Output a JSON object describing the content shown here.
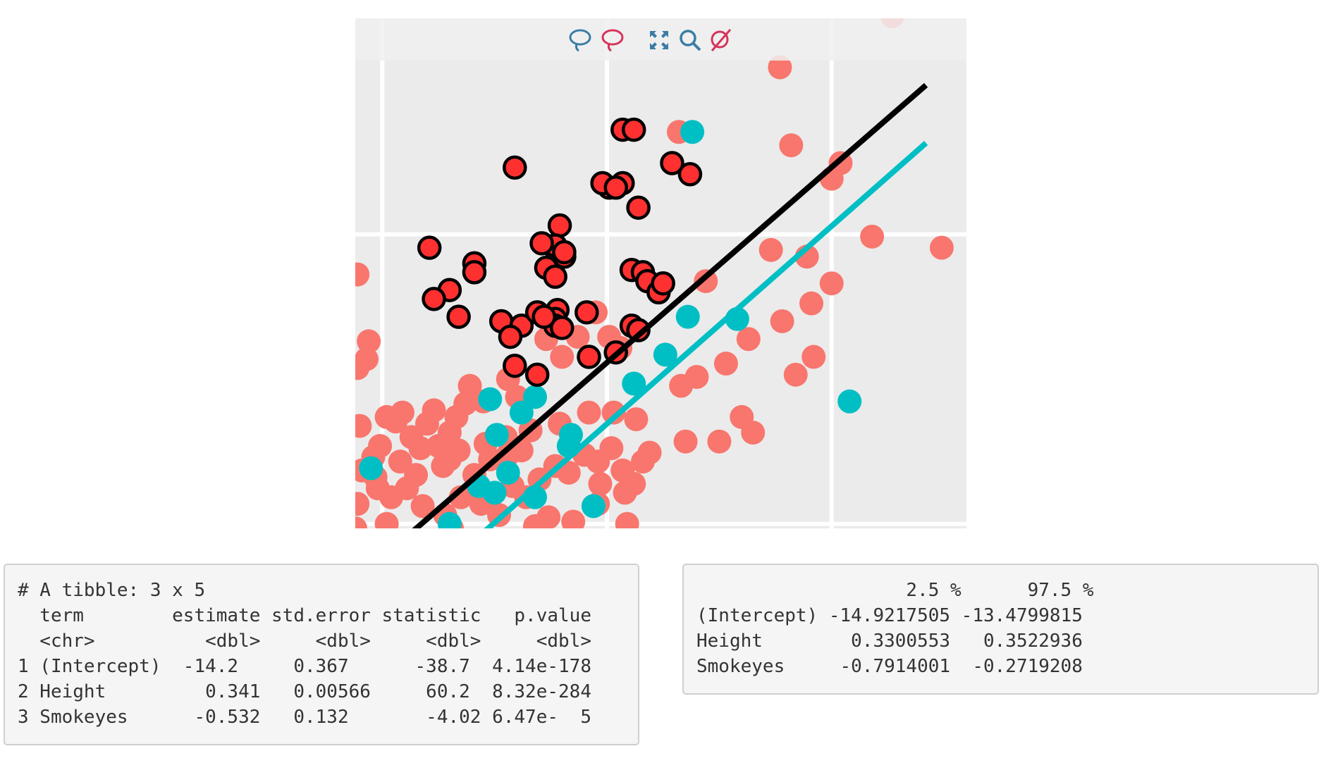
{
  "chart_data": {
    "type": "scatter",
    "title": "",
    "xlabel": "",
    "ylabel": "",
    "xlim": [
      -0.12,
      2.6
    ],
    "ylim": [
      -0.02,
      2.27
    ],
    "grid": true,
    "gridlines_x": [
      0,
      1,
      2
    ],
    "gridlines_y": [
      0,
      1.3
    ],
    "series": [
      {
        "color": "#f8766d",
        "points": [
          [
            2.27,
            2.28
          ],
          [
            1.77,
            2.05
          ],
          [
            1.32,
            1.76
          ],
          [
            1.82,
            1.7
          ],
          [
            2.04,
            1.62
          ],
          [
            2.0,
            1.55
          ],
          [
            1.73,
            1.23
          ],
          [
            2.18,
            1.29
          ],
          [
            2.49,
            1.24
          ],
          [
            1.89,
            1.2
          ],
          [
            2.0,
            1.08
          ],
          [
            1.44,
            1.09
          ],
          [
            1.91,
            0.99
          ],
          [
            1.78,
            0.91
          ],
          [
            1.63,
            0.83
          ],
          [
            1.92,
            0.75
          ],
          [
            1.4,
            0.66
          ],
          [
            1.53,
            0.72
          ],
          [
            1.84,
            0.67
          ],
          [
            1.6,
            0.48
          ],
          [
            1.65,
            0.41
          ],
          [
            1.5,
            0.37
          ],
          [
            1.35,
            0.37
          ],
          [
            1.19,
            0.32
          ],
          [
            1.13,
            0.47
          ],
          [
            1.33,
            0.62
          ],
          [
            1.06,
            0.79
          ],
          [
            1.01,
            0.84
          ],
          [
            0.95,
            0.95
          ],
          [
            0.87,
            0.84
          ],
          [
            0.8,
            0.75
          ],
          [
            0.73,
            0.83
          ],
          [
            0.69,
            0.67
          ],
          [
            0.6,
            0.57
          ],
          [
            0.56,
            0.65
          ],
          [
            0.45,
            0.55
          ],
          [
            0.39,
            0.62
          ],
          [
            0.37,
            0.54
          ],
          [
            0.33,
            0.48
          ],
          [
            0.3,
            0.41
          ],
          [
            0.25,
            0.35
          ],
          [
            0.23,
            0.51
          ],
          [
            0.2,
            0.45
          ],
          [
            0.17,
            0.34
          ],
          [
            0.13,
            0.39
          ],
          [
            0.09,
            0.5
          ],
          [
            0.06,
            0.46
          ],
          [
            0.02,
            0.48
          ],
          [
            -0.01,
            0.35
          ],
          [
            -0.04,
            0.3
          ],
          [
            -0.02,
            0.16
          ],
          [
            0.04,
            0.12
          ],
          [
            0.11,
            0.16
          ],
          [
            0.18,
            0.08
          ],
          [
            0.28,
            0.04
          ],
          [
            0.35,
            0.12
          ],
          [
            0.44,
            0.09
          ],
          [
            0.52,
            0.04
          ],
          [
            0.58,
            0.17
          ],
          [
            0.64,
            0.12
          ],
          [
            0.7,
            0.2
          ],
          [
            0.77,
            0.26
          ],
          [
            0.83,
            0.23
          ],
          [
            0.9,
            0.31
          ],
          [
            0.96,
            0.28
          ],
          [
            1.02,
            0.34
          ],
          [
            1.07,
            0.24
          ],
          [
            1.12,
            0.18
          ],
          [
            0.74,
            0.03
          ],
          [
            0.85,
            0.01
          ],
          [
            0.96,
            0.09
          ],
          [
            1.08,
            0.14
          ],
          [
            1.16,
            0.28
          ],
          [
            0.62,
            0.33
          ],
          [
            0.48,
            0.29
          ],
          [
            0.41,
            0.22
          ],
          [
            0.27,
            0.26
          ],
          [
            0.15,
            0.22
          ],
          [
            0.08,
            0.28
          ],
          [
            -0.03,
            0.21
          ],
          [
            -0.09,
            0.24
          ],
          [
            -0.11,
            0.09
          ],
          [
            -0.1,
            0.44
          ],
          [
            -0.11,
            0.7
          ],
          [
            -0.07,
            0.74
          ],
          [
            -0.11,
            1.12
          ],
          [
            -0.06,
            0.82
          ],
          [
            0.56,
            0.31
          ],
          [
            0.66,
            0.42
          ],
          [
            0.79,
            0.45
          ],
          [
            0.92,
            0.5
          ],
          [
            0.55,
            0.39
          ],
          [
            0.34,
            0.33
          ],
          [
            -0.12,
            -0.02
          ],
          [
            0.02,
            0.0
          ],
          [
            0.31,
            -0.02
          ],
          [
            0.68,
            -0.01
          ],
          [
            1.09,
            0.0
          ],
          [
            0.3,
            0.29
          ],
          [
            0.46,
            0.36
          ],
          [
            1.03,
            0.5
          ],
          [
            0.97,
            0.18
          ]
        ]
      },
      {
        "color": "#00bfc4",
        "points": [
          [
            1.38,
            1.76
          ],
          [
            1.36,
            0.93
          ],
          [
            1.58,
            0.92
          ],
          [
            1.26,
            0.76
          ],
          [
            1.12,
            0.63
          ],
          [
            2.08,
            0.55
          ],
          [
            0.48,
            0.56
          ],
          [
            0.68,
            0.57
          ],
          [
            0.62,
            0.5
          ],
          [
            0.51,
            0.4
          ],
          [
            0.84,
            0.4
          ],
          [
            0.83,
            0.35
          ],
          [
            0.56,
            0.23
          ],
          [
            0.43,
            0.17
          ],
          [
            0.5,
            0.14
          ],
          [
            0.68,
            0.12
          ],
          [
            0.94,
            0.08
          ],
          [
            -0.05,
            0.25
          ],
          [
            0.3,
            0.0
          ]
        ]
      },
      {
        "color": "#ff3030",
        "stroke": "#000000",
        "points": [
          [
            0.59,
            1.6
          ],
          [
            0.21,
            1.24
          ],
          [
            1.07,
            1.77
          ],
          [
            1.12,
            1.77
          ],
          [
            1.29,
            1.62
          ],
          [
            1.37,
            1.57
          ],
          [
            1.07,
            1.53
          ],
          [
            1.01,
            1.51
          ],
          [
            0.98,
            1.53
          ],
          [
            1.04,
            1.51
          ],
          [
            1.14,
            1.42
          ],
          [
            0.79,
            1.34
          ],
          [
            0.77,
            1.25
          ],
          [
            0.78,
            1.21
          ],
          [
            0.77,
            1.25
          ],
          [
            0.81,
            1.2
          ],
          [
            0.71,
            1.26
          ],
          [
            0.81,
            1.22
          ],
          [
            0.73,
            1.15
          ],
          [
            0.77,
            1.11
          ],
          [
            1.11,
            1.14
          ],
          [
            1.16,
            1.13
          ],
          [
            1.18,
            1.09
          ],
          [
            1.23,
            1.04
          ],
          [
            1.25,
            1.08
          ],
          [
            0.41,
            1.17
          ],
          [
            0.41,
            1.13
          ],
          [
            0.3,
            1.05
          ],
          [
            0.23,
            1.01
          ],
          [
            0.34,
            0.93
          ],
          [
            0.53,
            0.91
          ],
          [
            0.62,
            0.89
          ],
          [
            0.69,
            0.95
          ],
          [
            0.78,
            0.96
          ],
          [
            0.91,
            0.95
          ],
          [
            0.77,
            0.92
          ],
          [
            0.77,
            0.89
          ],
          [
            0.8,
            0.88
          ],
          [
            1.04,
            0.77
          ],
          [
            1.11,
            0.89
          ],
          [
            1.14,
            0.87
          ],
          [
            0.57,
            0.84
          ],
          [
            0.92,
            0.75
          ],
          [
            0.59,
            0.71
          ],
          [
            0.69,
            0.67
          ],
          [
            0.72,
            0.93
          ]
        ]
      }
    ],
    "lines": [
      {
        "color": "#000000",
        "x": [
          0.14,
          2.42
        ],
        "y": [
          -0.03,
          1.97
        ]
      },
      {
        "color": "#00bfc4",
        "x": [
          0.46,
          2.42
        ],
        "y": [
          -0.03,
          1.71
        ]
      }
    ]
  },
  "modebar": {
    "icons": [
      {
        "name": "lasso-select-icon",
        "color": "#3b7ca6"
      },
      {
        "name": "lasso-deselect-icon",
        "color": "#d6345a"
      },
      {
        "name": "autoscale-icon",
        "color": "#3b7ca6"
      },
      {
        "name": "zoom-icon",
        "color": "#3b7ca6"
      },
      {
        "name": "reset-zoom-icon",
        "color": "#d6345a"
      }
    ]
  },
  "tibble_output": {
    "lines": [
      "# A tibble: 3 x 5",
      "  term        estimate std.error statistic   p.value",
      "  <chr>          <dbl>     <dbl>     <dbl>     <dbl>",
      "1 (Intercept)  -14.2     0.367      -38.7  4.14e-178",
      "2 Height         0.341   0.00566     60.2  8.32e-284",
      "3 Smokeyes      -0.532   0.132       -4.02 6.47e-  5"
    ]
  },
  "confint_output": {
    "lines": [
      "                   2.5 %      97.5 %",
      "(Intercept) -14.9217505 -13.4799815",
      "Height        0.3300553   0.3522936",
      "Smokeyes     -0.7914001  -0.2719208"
    ]
  }
}
